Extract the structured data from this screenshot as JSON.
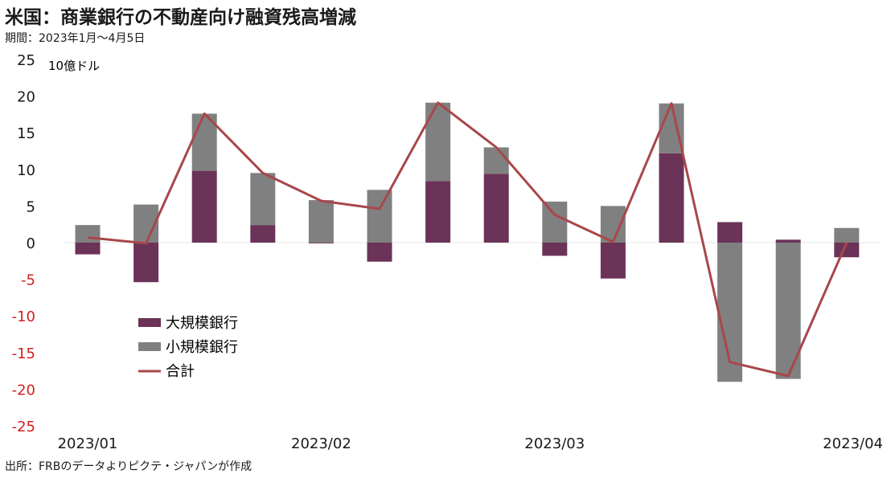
{
  "header": {
    "title": "米国：商業銀行の不動産向け融資残高増減",
    "subtitle": "期間：2023年1月～4月5日"
  },
  "footer": {
    "source": "出所：FRBのデータよりピクテ・ジャパンが作成"
  },
  "colors": {
    "large_banks": "#6b3358",
    "small_banks": "#808080",
    "total": "#a8474a",
    "negative_tick": "#d42020",
    "zero_line": "#e4e4e4"
  },
  "chart_data": {
    "type": "bar",
    "stacked": true,
    "unit_label": "10億ドル",
    "ylim": [
      -25,
      25
    ],
    "yticks": [
      25,
      20,
      15,
      10,
      5,
      0,
      -5,
      -10,
      -15,
      -20,
      -25
    ],
    "xtick_labels": [
      {
        "label": "2023/01",
        "index": 0
      },
      {
        "label": "2023/02",
        "index": 4
      },
      {
        "label": "2023/03",
        "index": 8
      },
      {
        "label": "2023/04",
        "index": 13
      }
    ],
    "n_points": 14,
    "series": [
      {
        "name": "大規模銀行",
        "kind": "bar",
        "values": [
          -1.6,
          -5.4,
          9.8,
          2.4,
          -0.1,
          -2.6,
          8.4,
          9.4,
          -1.8,
          -4.9,
          12.2,
          2.8,
          0.4,
          -2.0
        ]
      },
      {
        "name": "小規模銀行",
        "kind": "bar",
        "values": [
          2.4,
          5.2,
          7.8,
          7.1,
          5.8,
          7.2,
          10.7,
          3.6,
          5.6,
          5.0,
          6.8,
          -19.0,
          -18.6,
          2.0
        ]
      },
      {
        "name": "合計",
        "kind": "line",
        "values": [
          0.7,
          -0.1,
          17.6,
          9.5,
          5.7,
          4.6,
          19.1,
          13.0,
          3.8,
          0.1,
          19.0,
          -16.3,
          -18.2,
          0.0
        ]
      }
    ],
    "legend_position": "lower-left"
  }
}
